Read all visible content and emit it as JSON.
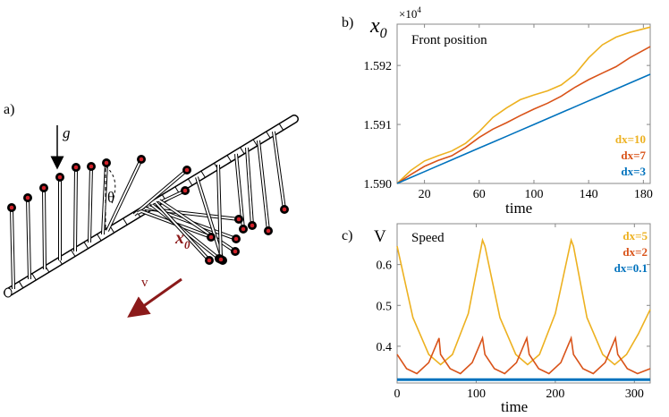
{
  "panel_a": {
    "label": "a)",
    "gravity_label": "g",
    "angle_label": "θ",
    "position_label": "x",
    "position_subscript": "0",
    "velocity_label": "v",
    "colors": {
      "pendulum_bob": "#d0222a",
      "velocity_arrow": "#8b1a1a",
      "position_label": "#8b1a1a"
    }
  },
  "panel_b": {
    "label": "b)",
    "ylabel_main": "x",
    "ylabel_sub": "0",
    "multiplier_base": "×10",
    "multiplier_exp": "4",
    "inner_title": "Front position",
    "xlabel": "time",
    "xticks": [
      "20",
      "60",
      "100",
      "140",
      "180"
    ],
    "yticks": [
      "1.590",
      "1.591",
      "1.592"
    ],
    "legend": [
      {
        "text": "dx=10",
        "color": "#edb120"
      },
      {
        "text": "dx=7",
        "color": "#d95319"
      },
      {
        "text": "dx=3",
        "color": "#0072bd"
      }
    ]
  },
  "panel_c": {
    "label": "c)",
    "ylabel": "V",
    "inner_title": "Speed",
    "xlabel": "time",
    "xticks": [
      "0",
      "100",
      "200",
      "300"
    ],
    "yticks": [
      "0.4",
      "0.5",
      "0.6"
    ],
    "legend": [
      {
        "text": "dx=5",
        "color": "#edb120"
      },
      {
        "text": "dx=2",
        "color": "#d95319"
      },
      {
        "text": "dx=0.1",
        "color": "#0072bd"
      }
    ]
  },
  "chart_data": [
    {
      "type": "line",
      "title": "Front position",
      "xlabel": "time",
      "ylabel": "x0 (×10^4)",
      "xlim": [
        0,
        185
      ],
      "ylim": [
        1.59,
        1.5927
      ],
      "grid": false,
      "legend_position": "bottom-right",
      "series": [
        {
          "name": "dx=10",
          "color": "#edb120",
          "x": [
            0,
            10,
            20,
            30,
            40,
            50,
            60,
            70,
            80,
            90,
            100,
            110,
            120,
            130,
            140,
            150,
            160,
            170,
            185
          ],
          "y": [
            1.59,
            1.59022,
            1.59038,
            1.59047,
            1.59055,
            1.59068,
            1.59088,
            1.59112,
            1.59128,
            1.59142,
            1.5915,
            1.59157,
            1.59167,
            1.59185,
            1.59213,
            1.59235,
            1.59248,
            1.59256,
            1.59265
          ]
        },
        {
          "name": "dx=7",
          "color": "#d95319",
          "x": [
            0,
            10,
            20,
            30,
            40,
            50,
            60,
            70,
            80,
            90,
            100,
            110,
            120,
            130,
            140,
            150,
            160,
            170,
            185
          ],
          "y": [
            1.59,
            1.59015,
            1.59029,
            1.59039,
            1.59047,
            1.59061,
            1.59078,
            1.59092,
            1.59103,
            1.59115,
            1.59126,
            1.59136,
            1.59148,
            1.59163,
            1.59176,
            1.59187,
            1.59198,
            1.59213,
            1.59232
          ]
        },
        {
          "name": "dx=3",
          "color": "#0072bd",
          "x": [
            0,
            10,
            20,
            30,
            40,
            50,
            60,
            70,
            80,
            90,
            100,
            110,
            120,
            130,
            140,
            150,
            160,
            170,
            185
          ],
          "y": [
            1.59,
            1.5901,
            1.5902,
            1.5903,
            1.5904,
            1.5905,
            1.5906,
            1.5907,
            1.5908,
            1.5909,
            1.591,
            1.5911,
            1.5912,
            1.5913,
            1.5914,
            1.5915,
            1.5916,
            1.5917,
            1.59185
          ]
        }
      ]
    },
    {
      "type": "line",
      "title": "Speed",
      "xlabel": "time",
      "ylabel": "V",
      "xlim": [
        0,
        320
      ],
      "ylim": [
        0.31,
        0.7
      ],
      "grid": false,
      "legend_position": "top-right",
      "series": [
        {
          "name": "dx=5",
          "color": "#edb120",
          "x": [
            0,
            20,
            40,
            55,
            70,
            90,
            108,
            111,
            130,
            150,
            165,
            180,
            200,
            220,
            223,
            240,
            260,
            275,
            290,
            305,
            320
          ],
          "y": [
            0.645,
            0.47,
            0.38,
            0.355,
            0.38,
            0.48,
            0.66,
            0.645,
            0.47,
            0.38,
            0.355,
            0.38,
            0.48,
            0.66,
            0.645,
            0.47,
            0.38,
            0.355,
            0.38,
            0.43,
            0.49
          ]
        },
        {
          "name": "dx=2",
          "color": "#d95319",
          "x": [
            0,
            12,
            25,
            40,
            53,
            55,
            67,
            80,
            95,
            108,
            111,
            123,
            136,
            151,
            164,
            167,
            179,
            192,
            207,
            220,
            223,
            235,
            248,
            263,
            276,
            279,
            291,
            304,
            320
          ],
          "y": [
            0.38,
            0.345,
            0.333,
            0.36,
            0.42,
            0.38,
            0.345,
            0.333,
            0.36,
            0.42,
            0.38,
            0.345,
            0.333,
            0.36,
            0.42,
            0.38,
            0.345,
            0.333,
            0.36,
            0.42,
            0.38,
            0.345,
            0.333,
            0.36,
            0.42,
            0.38,
            0.345,
            0.333,
            0.345
          ]
        },
        {
          "name": "dx=0.1",
          "color": "#0072bd",
          "x": [
            0,
            320
          ],
          "y": [
            0.318,
            0.318
          ]
        }
      ]
    }
  ]
}
